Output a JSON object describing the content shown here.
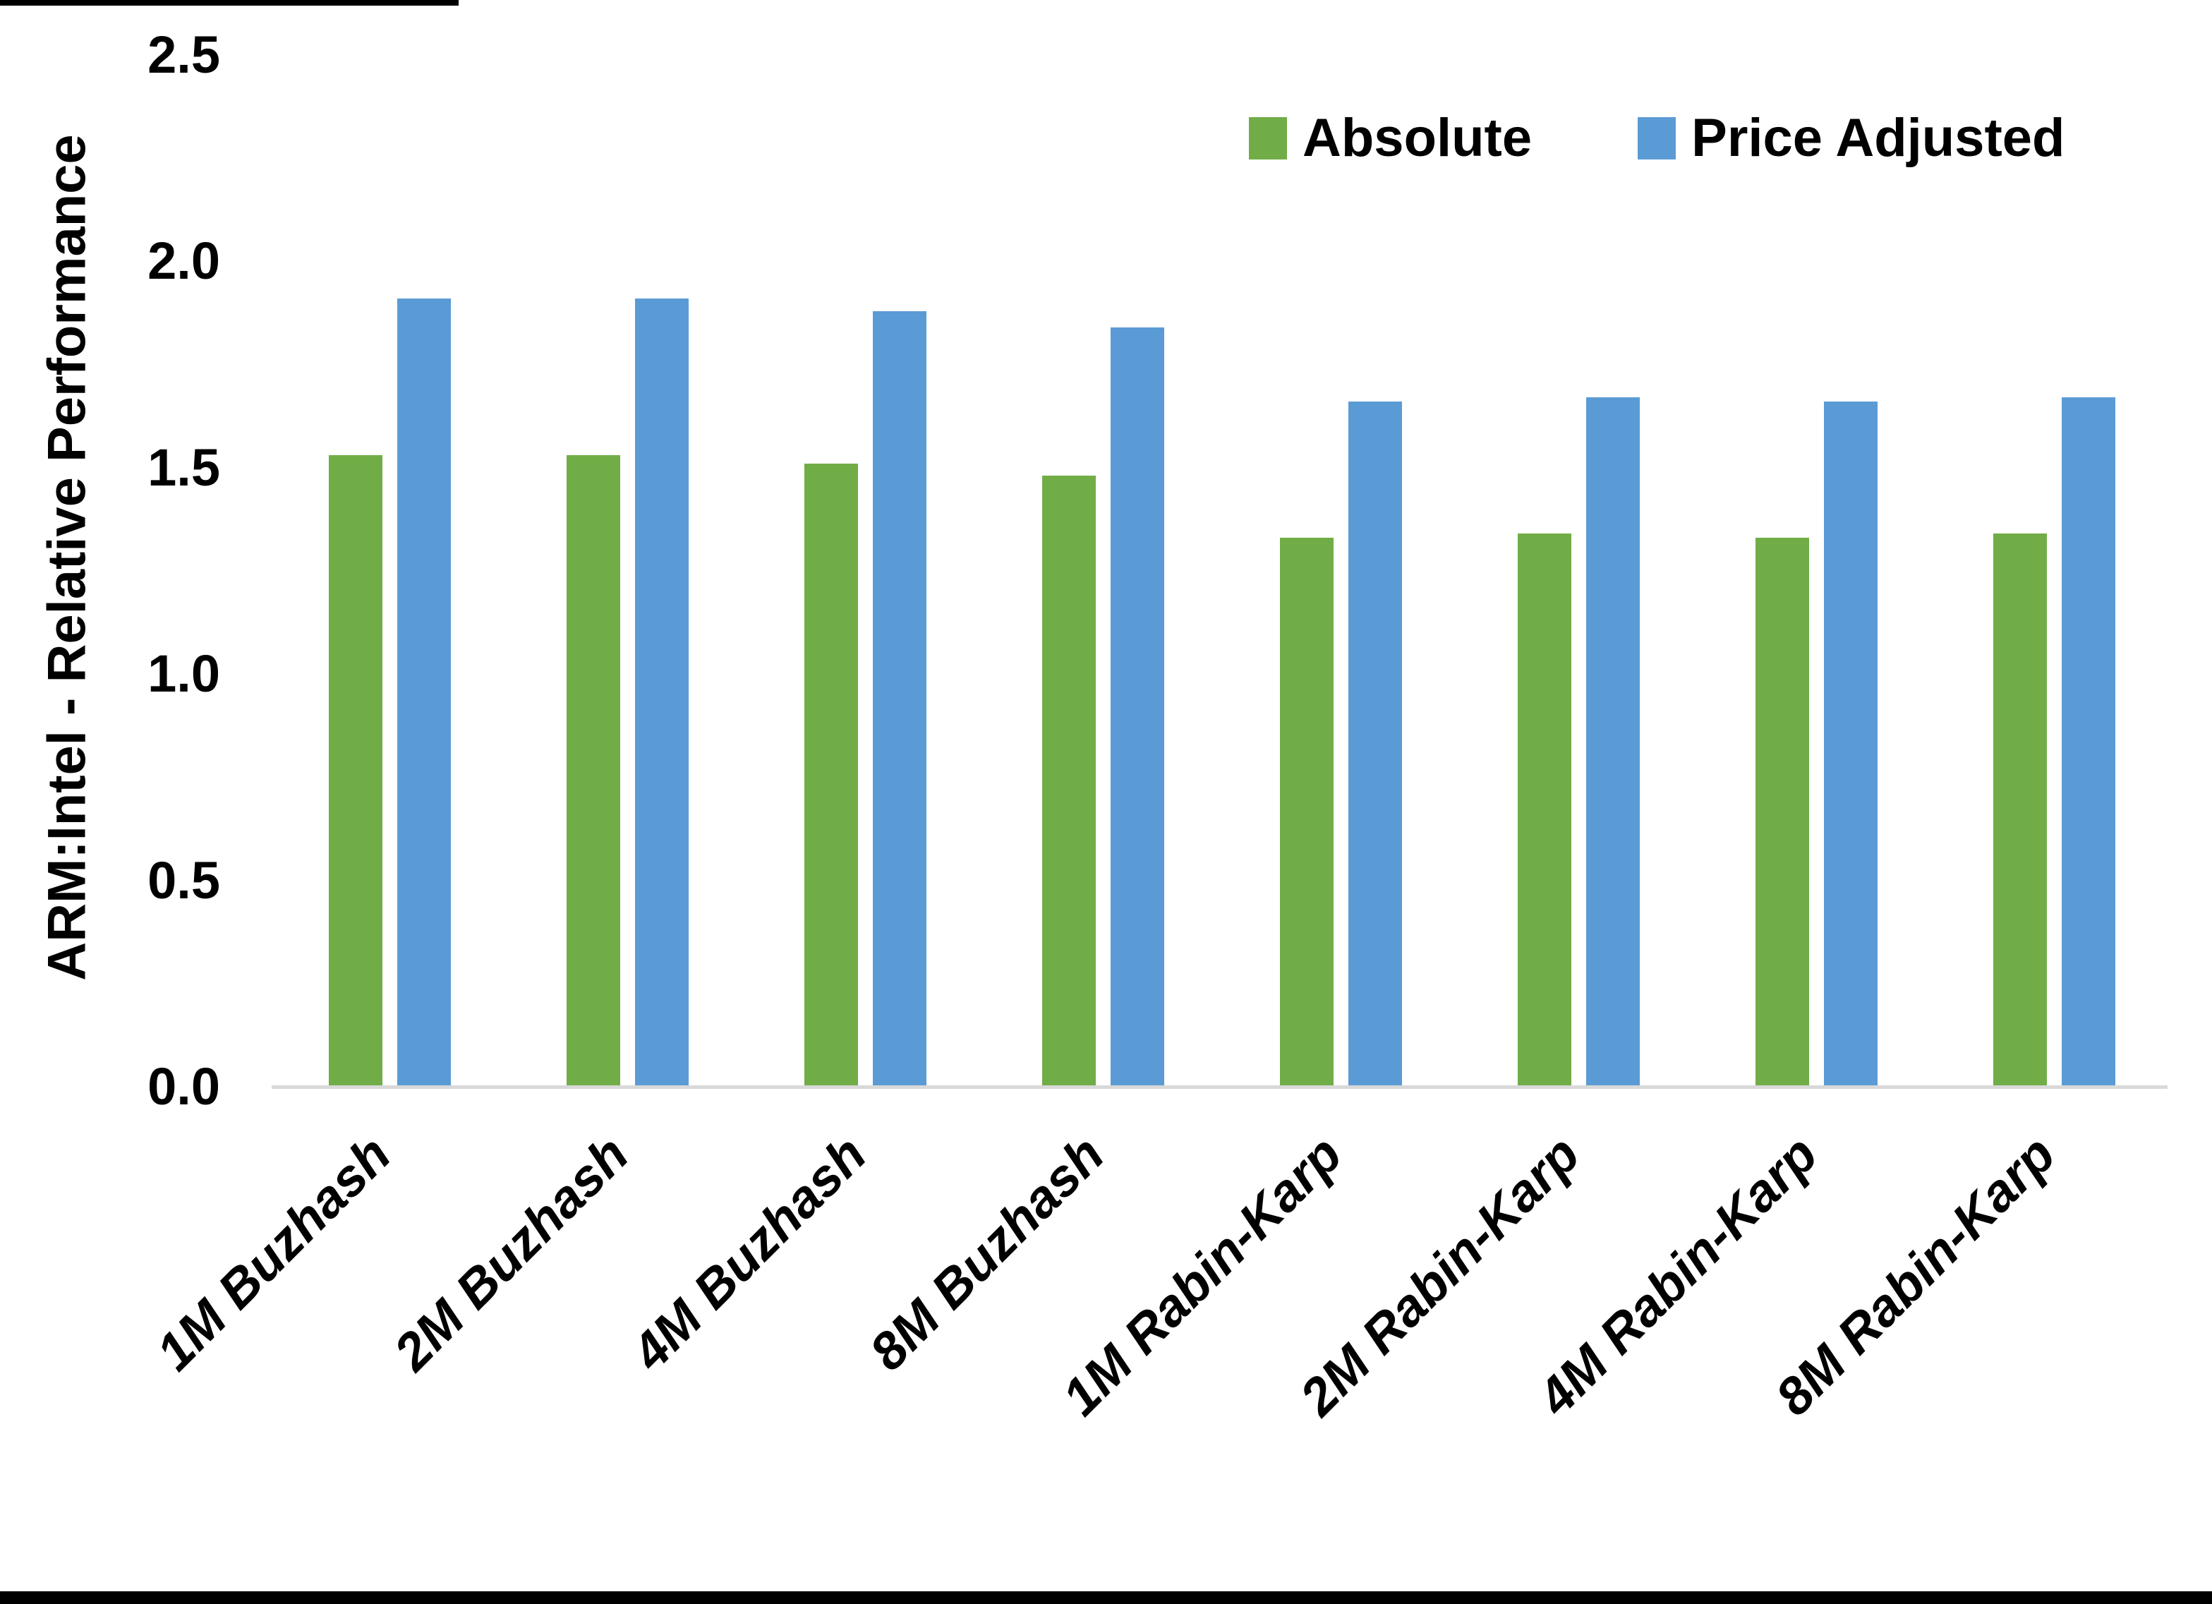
{
  "figure": {
    "background": "#FFFFFF",
    "frame_color": "#000000"
  },
  "chart_data": {
    "type": "bar",
    "title": "",
    "xlabel": "",
    "ylabel": "ARM:Intel - Relative Performance",
    "categories": [
      "1M Buzhash",
      "2M Buzhash",
      "4M Buzhash",
      "8M Buzhash",
      "1M Rabin-Karp",
      "2M Rabin-Karp",
      "4M Rabin-Karp",
      "8M Rabin-Karp"
    ],
    "series": [
      {
        "name": "Absolute",
        "color": "#70AD47",
        "values": [
          1.53,
          1.53,
          1.51,
          1.48,
          1.33,
          1.34,
          1.33,
          1.34
        ]
      },
      {
        "name": "Price Adjusted",
        "color": "#5B9BD5",
        "values": [
          1.91,
          1.91,
          1.88,
          1.84,
          1.66,
          1.67,
          1.66,
          1.67
        ]
      }
    ],
    "ylim": [
      0,
      2.5
    ],
    "ytick_step": 0.5,
    "yticks": [
      "0.0",
      "0.5",
      "1.0",
      "1.5",
      "2.0",
      "2.5"
    ],
    "grid": false,
    "legend_position": "top-right",
    "axis_line_color": "#D9D9D9",
    "text_color": "#000000",
    "bar_label_style": "italic, rotated 45 degrees"
  }
}
